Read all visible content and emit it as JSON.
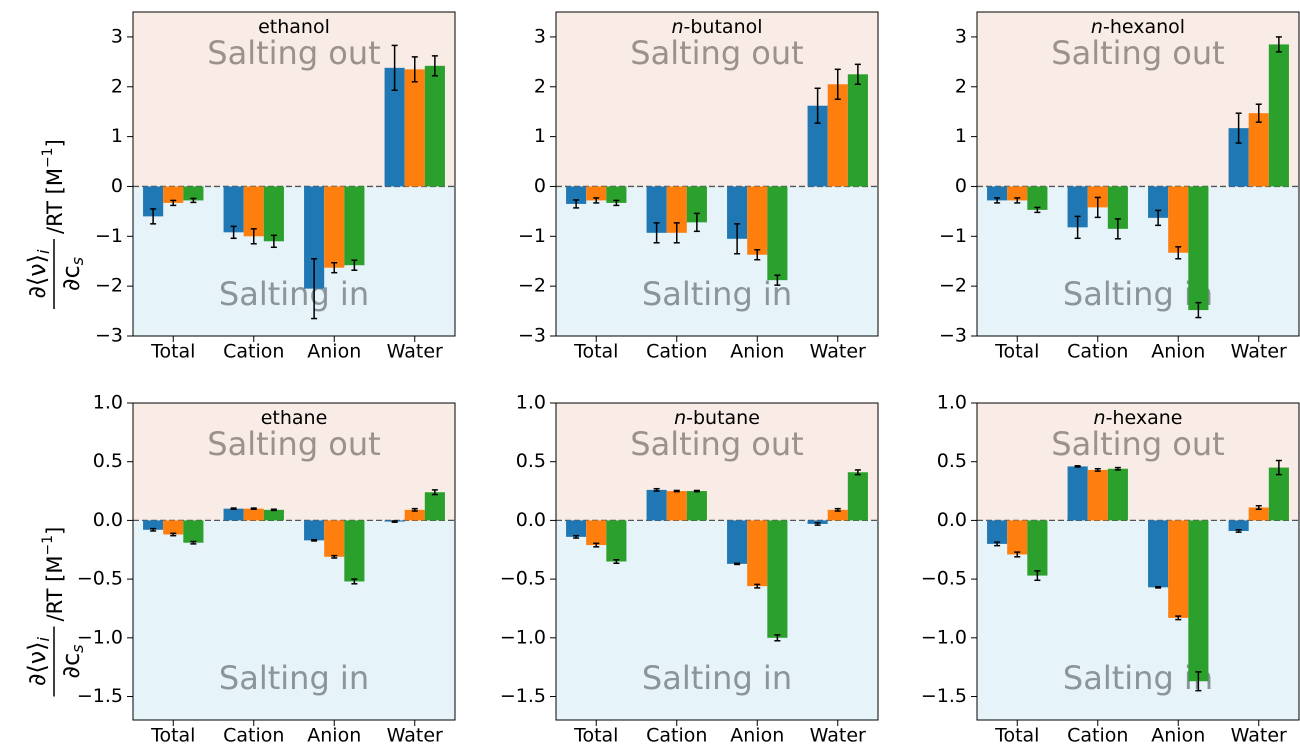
{
  "chart_data": [
    {
      "type": "bar",
      "title": {
        "text": "ethanol"
      },
      "ylabel": {
        "numerator": "∂⟨ν⟩",
        "numerator_sub": "i",
        "denominator": "∂c",
        "denominator_sub": "s",
        "rest": "/RT [M",
        "exp": "−1",
        "end": "]"
      },
      "annotations": [
        "Salting out",
        "Salting in"
      ],
      "categories": [
        "Total",
        "Cation",
        "Anion",
        "Water"
      ],
      "series": [
        {
          "color": "#1f77b4",
          "values": [
            -0.6,
            -0.92,
            -2.05,
            2.38
          ],
          "errors": [
            0.15,
            0.12,
            0.6,
            0.45
          ]
        },
        {
          "color": "#ff7f0e",
          "values": [
            -0.33,
            -1.0,
            -1.63,
            2.35
          ],
          "errors": [
            0.05,
            0.15,
            0.1,
            0.25
          ]
        },
        {
          "color": "#2ca02c",
          "values": [
            -0.28,
            -1.1,
            -1.58,
            2.42
          ],
          "errors": [
            0.04,
            0.12,
            0.1,
            0.2
          ]
        }
      ],
      "ylim": [
        -3,
        3.5
      ],
      "yticks": [
        {
          "value": -3,
          "label": "−3"
        },
        {
          "value": -2,
          "label": "−2"
        },
        {
          "value": -1,
          "label": "−1"
        },
        0,
        1,
        2,
        3
      ]
    },
    {
      "type": "bar",
      "title": {
        "italic": "n",
        "text": "-butanol"
      },
      "annotations": [
        "Salting out",
        "Salting in"
      ],
      "categories": [
        "Total",
        "Cation",
        "Anion",
        "Water"
      ],
      "series": [
        {
          "color": "#1f77b4",
          "values": [
            -0.35,
            -0.93,
            -1.05,
            1.62
          ],
          "errors": [
            0.08,
            0.2,
            0.3,
            0.35
          ]
        },
        {
          "color": "#ff7f0e",
          "values": [
            -0.28,
            -0.93,
            -1.37,
            2.05
          ],
          "errors": [
            0.05,
            0.2,
            0.1,
            0.3
          ]
        },
        {
          "color": "#2ca02c",
          "values": [
            -0.33,
            -0.72,
            -1.88,
            2.25
          ],
          "errors": [
            0.05,
            0.18,
            0.1,
            0.2
          ]
        }
      ],
      "ylim": [
        -3,
        3.5
      ],
      "yticks": [
        {
          "value": -3,
          "label": "−3"
        },
        {
          "value": -2,
          "label": "−2"
        },
        {
          "value": -1,
          "label": "−1"
        },
        0,
        1,
        2,
        3
      ]
    },
    {
      "type": "bar",
      "title": {
        "italic": "n",
        "text": "-hexanol"
      },
      "annotations": [
        "Salting out",
        "Salting in"
      ],
      "categories": [
        "Total",
        "Cation",
        "Anion",
        "Water"
      ],
      "series": [
        {
          "color": "#1f77b4",
          "values": [
            -0.28,
            -0.82,
            -0.63,
            1.17
          ],
          "errors": [
            0.05,
            0.22,
            0.15,
            0.3
          ]
        },
        {
          "color": "#ff7f0e",
          "values": [
            -0.28,
            -0.42,
            -1.33,
            1.47
          ],
          "errors": [
            0.05,
            0.2,
            0.12,
            0.18
          ]
        },
        {
          "color": "#2ca02c",
          "values": [
            -0.47,
            -0.85,
            -2.48,
            2.85
          ],
          "errors": [
            0.05,
            0.2,
            0.15,
            0.15
          ]
        }
      ],
      "ylim": [
        -3,
        3.5
      ],
      "yticks": [
        {
          "value": -3,
          "label": "−3"
        },
        {
          "value": -2,
          "label": "−2"
        },
        {
          "value": -1,
          "label": "−1"
        },
        0,
        1,
        2,
        3
      ]
    },
    {
      "type": "bar",
      "title": {
        "text": "ethane"
      },
      "ylabel": {
        "numerator": "∂⟨ν⟩",
        "numerator_sub": "i",
        "denominator": "∂c",
        "denominator_sub": "s",
        "rest": "/RT [M",
        "exp": "−1",
        "end": "]"
      },
      "annotations": [
        "Salting out",
        "Salting in"
      ],
      "categories": [
        "Total",
        "Cation",
        "Anion",
        "Water"
      ],
      "series": [
        {
          "color": "#1f77b4",
          "values": [
            -0.08,
            0.1,
            -0.17,
            -0.01
          ],
          "errors": [
            0.01,
            0.005,
            0.005,
            0.005
          ]
        },
        {
          "color": "#ff7f0e",
          "values": [
            -0.12,
            0.1,
            -0.31,
            0.09
          ],
          "errors": [
            0.01,
            0.005,
            0.01,
            0.01
          ]
        },
        {
          "color": "#2ca02c",
          "values": [
            -0.19,
            0.09,
            -0.52,
            0.24
          ],
          "errors": [
            0.01,
            0.005,
            0.02,
            0.02
          ]
        }
      ],
      "ylim": [
        -1.7,
        1.0
      ],
      "yticks": [
        {
          "value": -1.5,
          "label": "−1.5"
        },
        {
          "value": -1.0,
          "label": "−1.0"
        },
        {
          "value": -0.5,
          "label": "−0.5"
        },
        {
          "value": 0,
          "label": "0.0"
        },
        0.5,
        {
          "value": 1,
          "label": "1.0"
        }
      ]
    },
    {
      "type": "bar",
      "title": {
        "italic": "n",
        "text": "-butane"
      },
      "annotations": [
        "Salting out",
        "Salting in"
      ],
      "categories": [
        "Total",
        "Cation",
        "Anion",
        "Water"
      ],
      "series": [
        {
          "color": "#1f77b4",
          "values": [
            -0.14,
            0.26,
            -0.37,
            -0.03
          ],
          "errors": [
            0.01,
            0.01,
            0.005,
            0.01
          ]
        },
        {
          "color": "#ff7f0e",
          "values": [
            -0.21,
            0.25,
            -0.56,
            0.09
          ],
          "errors": [
            0.015,
            0.005,
            0.015,
            0.01
          ]
        },
        {
          "color": "#2ca02c",
          "values": [
            -0.35,
            0.25,
            -1.0,
            0.41
          ],
          "errors": [
            0.015,
            0.005,
            0.025,
            0.02
          ]
        }
      ],
      "ylim": [
        -1.7,
        1.0
      ],
      "yticks": [
        {
          "value": -1.5,
          "label": "−1.5"
        },
        {
          "value": -1.0,
          "label": "−1.0"
        },
        {
          "value": -0.5,
          "label": "−0.5"
        },
        {
          "value": 0,
          "label": "0.0"
        },
        0.5,
        {
          "value": 1,
          "label": "1.0"
        }
      ]
    },
    {
      "type": "bar",
      "title": {
        "italic": "n",
        "text": "-hexane"
      },
      "annotations": [
        "Salting out",
        "Salting in"
      ],
      "categories": [
        "Total",
        "Cation",
        "Anion",
        "Water"
      ],
      "series": [
        {
          "color": "#1f77b4",
          "values": [
            -0.2,
            0.46,
            -0.57,
            -0.09
          ],
          "errors": [
            0.015,
            0.005,
            0.005,
            0.01
          ]
        },
        {
          "color": "#ff7f0e",
          "values": [
            -0.29,
            0.43,
            -0.83,
            0.11
          ],
          "errors": [
            0.02,
            0.01,
            0.015,
            0.015
          ]
        },
        {
          "color": "#2ca02c",
          "values": [
            -0.47,
            0.44,
            -1.37,
            0.45
          ],
          "errors": [
            0.04,
            0.01,
            0.08,
            0.06
          ]
        }
      ],
      "ylim": [
        -1.7,
        1.0
      ],
      "yticks": [
        {
          "value": -1.5,
          "label": "−1.5"
        },
        {
          "value": -1.0,
          "label": "−1.0"
        },
        {
          "value": -0.5,
          "label": "−0.5"
        },
        {
          "value": 0,
          "label": "0.0"
        },
        0.5,
        {
          "value": 1,
          "label": "1.0"
        }
      ]
    }
  ]
}
